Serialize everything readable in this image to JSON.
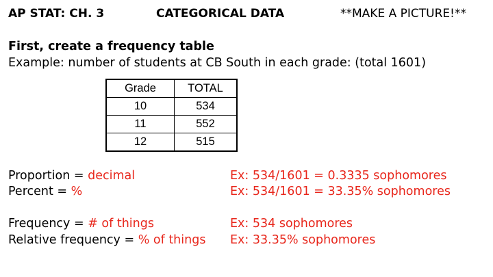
{
  "header": {
    "left": "AP STAT: CH. 3",
    "center": "CATEGORICAL DATA",
    "right": "**MAKE A PICTURE!**"
  },
  "subtitle": "First, create a frequency table",
  "example_text": "Example: number of students at CB South in each grade: (total 1601)",
  "table": {
    "headers": [
      "Grade",
      "TOTAL"
    ],
    "rows": [
      [
        "10",
        "534"
      ],
      [
        "11",
        "552"
      ],
      [
        "12",
        "515"
      ]
    ]
  },
  "definitions": [
    {
      "term": "Proportion = ",
      "meaning": "decimal",
      "example": "Ex: 534/1601 = 0.3335 sophomores"
    },
    {
      "term": "Percent = ",
      "meaning": "%",
      "example": "Ex: 534/1601 = 33.35% sophomores"
    },
    {
      "term": "Frequency = ",
      "meaning": "# of things",
      "example": "Ex: 534 sophomores"
    },
    {
      "term": "Relative frequency = ",
      "meaning": "% of things",
      "example": "Ex: 33.35% sophomores"
    }
  ],
  "colors": {
    "accent_red": "#e8261b"
  }
}
